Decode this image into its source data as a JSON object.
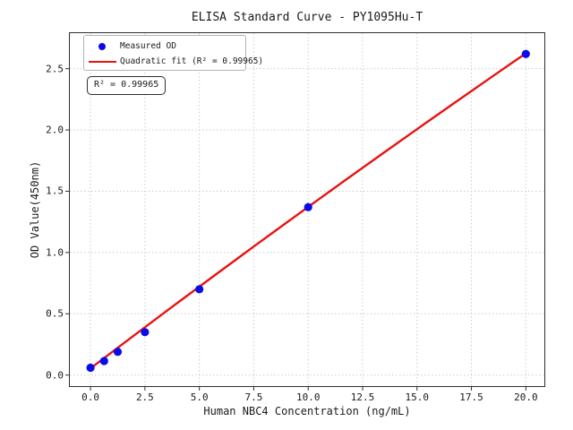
{
  "chart_data": {
    "type": "scatter",
    "title": "ELISA Standard Curve - PY1095Hu-T",
    "xlabel": "Human NBC4 Concentration (ng/mL)",
    "ylabel": "OD Value(450nm)",
    "xlim": [
      -0.95,
      20.85
    ],
    "ylim": [
      -0.09,
      2.79
    ],
    "xticks": [
      0.0,
      2.5,
      5.0,
      7.5,
      10.0,
      12.5,
      15.0,
      17.5,
      20.0
    ],
    "yticks": [
      0.0,
      0.5,
      1.0,
      1.5,
      2.0,
      2.5
    ],
    "grid": true,
    "grid_style": "dotted",
    "legend_position": "upper-left",
    "series": [
      {
        "name": "Measured OD",
        "type": "scatter",
        "color": "#0b0bea",
        "x": [
          0,
          0.625,
          1.25,
          2.5,
          5,
          10,
          20
        ],
        "y": [
          0.06,
          0.115,
          0.19,
          0.35,
          0.7,
          1.37,
          2.62
        ]
      },
      {
        "name": "Quadratic fit (R² = 0.99965)",
        "type": "line",
        "color": "#e81212",
        "fit": {
          "a": -0.00032,
          "b": 0.1349,
          "c": 0.055
        },
        "x_range": [
          0,
          20
        ]
      }
    ],
    "annotation": "R² = 0.99965",
    "colors": {
      "grid": "#cccccc",
      "spine": "#2f2f2f",
      "tick": "#1a1a1a",
      "scatter": "#0b0bea",
      "fit_line": "#e81212"
    }
  }
}
